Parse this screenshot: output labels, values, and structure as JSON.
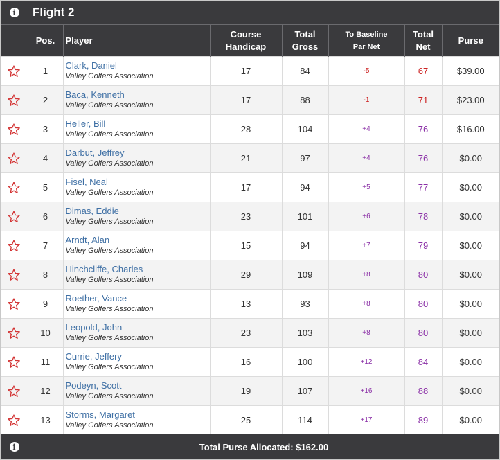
{
  "flight": {
    "title": "Flight 2"
  },
  "columns": {
    "pos": "Pos.",
    "player": "Player",
    "course_handicap_1": "Course",
    "course_handicap_2": "Handicap",
    "total_gross_1": "Total",
    "total_gross_2": "Gross",
    "baseline_1": "To Baseline",
    "baseline_2": "Par Net",
    "total_net_1": "Total",
    "total_net_2": "Net",
    "purse": "Purse"
  },
  "rows": [
    {
      "pos": "1",
      "name": "Clark, Daniel",
      "org": "Valley Golfers Association",
      "handicap": "17",
      "gross": "84",
      "baseline": "-5",
      "net": "67",
      "purse": "$39.00"
    },
    {
      "pos": "2",
      "name": "Baca, Kenneth",
      "org": "Valley Golfers Association",
      "handicap": "17",
      "gross": "88",
      "baseline": "-1",
      "net": "71",
      "purse": "$23.00"
    },
    {
      "pos": "3",
      "name": "Heller, Bill",
      "org": "Valley Golfers Association",
      "handicap": "28",
      "gross": "104",
      "baseline": "+4",
      "net": "76",
      "purse": "$16.00"
    },
    {
      "pos": "4",
      "name": "Darbut, Jeffrey",
      "org": "Valley Golfers Association",
      "handicap": "21",
      "gross": "97",
      "baseline": "+4",
      "net": "76",
      "purse": "$0.00"
    },
    {
      "pos": "5",
      "name": "Fisel, Neal",
      "org": "Valley Golfers Association",
      "handicap": "17",
      "gross": "94",
      "baseline": "+5",
      "net": "77",
      "purse": "$0.00"
    },
    {
      "pos": "6",
      "name": "Dimas, Eddie",
      "org": "Valley Golfers Association",
      "handicap": "23",
      "gross": "101",
      "baseline": "+6",
      "net": "78",
      "purse": "$0.00"
    },
    {
      "pos": "7",
      "name": "Arndt, Alan",
      "org": "Valley Golfers Association",
      "handicap": "15",
      "gross": "94",
      "baseline": "+7",
      "net": "79",
      "purse": "$0.00"
    },
    {
      "pos": "8",
      "name": "Hinchcliffe, Charles",
      "org": "Valley Golfers Association",
      "handicap": "29",
      "gross": "109",
      "baseline": "+8",
      "net": "80",
      "purse": "$0.00"
    },
    {
      "pos": "9",
      "name": "Roether, Vance",
      "org": "Valley Golfers Association",
      "handicap": "13",
      "gross": "93",
      "baseline": "+8",
      "net": "80",
      "purse": "$0.00"
    },
    {
      "pos": "10",
      "name": "Leopold, John",
      "org": "Valley Golfers Association",
      "handicap": "23",
      "gross": "103",
      "baseline": "+8",
      "net": "80",
      "purse": "$0.00"
    },
    {
      "pos": "11",
      "name": "Currie, Jeffery",
      "org": "Valley Golfers Association",
      "handicap": "16",
      "gross": "100",
      "baseline": "+12",
      "net": "84",
      "purse": "$0.00"
    },
    {
      "pos": "12",
      "name": "Podeyn, Scott",
      "org": "Valley Golfers Association",
      "handicap": "19",
      "gross": "107",
      "baseline": "+16",
      "net": "88",
      "purse": "$0.00"
    },
    {
      "pos": "13",
      "name": "Storms, Margaret",
      "org": "Valley Golfers Association",
      "handicap": "25",
      "gross": "114",
      "baseline": "+17",
      "net": "89",
      "purse": "$0.00"
    }
  ],
  "footer": {
    "total_purse": "Total Purse Allocated: $162.00"
  },
  "icons": {
    "info": "info-icon",
    "favorite": "star-outline-icon"
  },
  "colors": {
    "header_bg": "#3a3a3d",
    "link": "#3e6fa4",
    "under_par": "#cc2222",
    "over_par": "#8a2fa6",
    "star": "#d33333"
  }
}
